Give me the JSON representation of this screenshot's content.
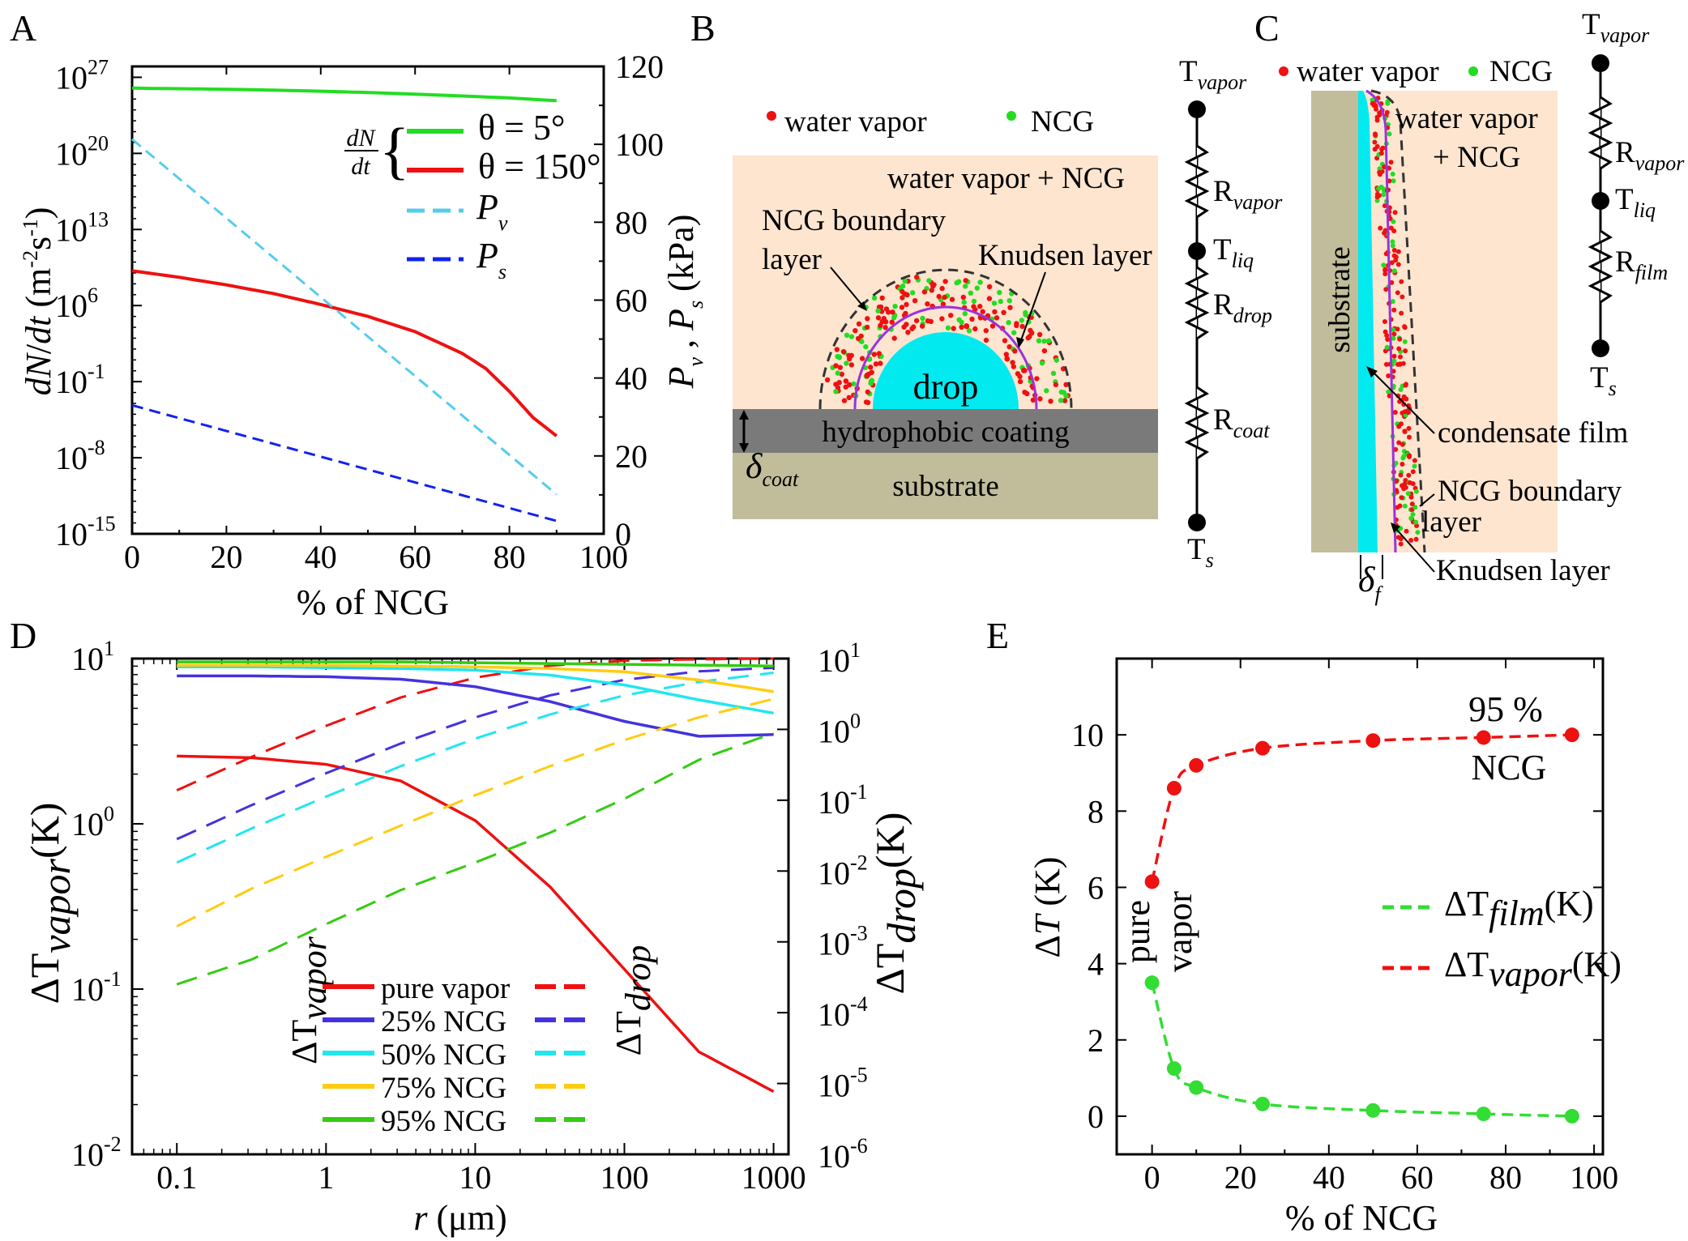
{
  "panels": {
    "a": "A",
    "b": "B",
    "c": "C",
    "d": "D",
    "e": "E"
  },
  "colors": {
    "green": "#22dd22",
    "red": "#ee1111",
    "cyan": "#55ccee",
    "blue": "#1122ee",
    "indigo": "#4433dd",
    "cyan2": "#22e6f0",
    "yellow": "#ffcc11",
    "green2": "#33cc11",
    "peach": "#fde5d0",
    "gray": "#7a7a7a",
    "khaki": "#c1bd9b",
    "drop": "#00eaf0",
    "purple": "#9933dd"
  },
  "chart_data": [
    {
      "id": "A",
      "type": "line",
      "xlabel": "% of NCG",
      "ylabel_left": "dN/dt (m-2s-1)",
      "ylabel_right": "Pv , Ps (kPa)",
      "xlim": [
        0,
        100
      ],
      "ylim_left_log10": [
        -15,
        28
      ],
      "ylim_right": [
        0,
        120
      ],
      "xticks": [
        "0",
        "20",
        "40",
        "60",
        "80",
        "100"
      ],
      "yticks_left": [
        {
          "base": "10",
          "exp": "27"
        },
        {
          "base": "10",
          "exp": "20"
        },
        {
          "base": "10",
          "exp": "13"
        },
        {
          "base": "10",
          "exp": "6"
        },
        {
          "base": "10",
          "exp": "-1"
        },
        {
          "base": "10",
          "exp": "-8"
        },
        {
          "base": "10",
          "exp": "-15"
        }
      ],
      "yticks_right": [
        "120",
        "100",
        "80",
        "60",
        "40",
        "20",
        "0"
      ],
      "legend_prefix": {
        "num": "dN",
        "den": "dt"
      },
      "series": [
        {
          "name": "θ = 5°",
          "axis": "left",
          "style": "solid",
          "color": "#22dd22",
          "x": [
            0,
            10,
            20,
            30,
            40,
            50,
            60,
            70,
            80,
            90
          ],
          "log10_y": [
            26.0,
            25.95,
            25.9,
            25.82,
            25.72,
            25.6,
            25.45,
            25.28,
            25.1,
            24.85
          ]
        },
        {
          "name": "θ = 150°",
          "axis": "left",
          "style": "solid",
          "color": "#ee1111",
          "x": [
            0,
            10,
            20,
            30,
            40,
            50,
            60,
            70,
            75,
            80,
            85,
            90
          ],
          "log10_y": [
            9.2,
            8.6,
            7.9,
            7.1,
            6.1,
            5.0,
            3.6,
            1.6,
            0.2,
            -1.9,
            -4.3,
            -6.0
          ]
        },
        {
          "name": "Pv",
          "axis": "right",
          "style": "dash",
          "color": "#55ccee",
          "x": [
            0,
            90
          ],
          "y": [
            101.3,
            10.1
          ]
        },
        {
          "name": "Ps",
          "axis": "right",
          "style": "dash",
          "color": "#1122ee",
          "x": [
            0,
            90
          ],
          "y": [
            33.0,
            3.3
          ]
        }
      ]
    },
    {
      "id": "D",
      "type": "line",
      "xlabel": "r (μm)",
      "ylabel_left": "ΔTvapor(K)",
      "ylabel_right": "ΔTdrop(K)",
      "xlim_log10": [
        -1.3,
        3.1
      ],
      "ylim_left_log10": [
        -2,
        1
      ],
      "ylim_right_log10": [
        -6,
        1
      ],
      "xticks": [
        "0.1",
        "1",
        "10",
        "100",
        "1000"
      ],
      "yticks_left": [
        {
          "base": "10",
          "exp": "1"
        },
        {
          "base": "10",
          "exp": "0"
        },
        {
          "base": "10",
          "exp": "-1"
        },
        {
          "base": "10",
          "exp": "-2"
        }
      ],
      "yticks_right": [
        {
          "base": "10",
          "exp": "1"
        },
        {
          "base": "10",
          "exp": "0"
        },
        {
          "base": "10",
          "exp": "-1"
        },
        {
          "base": "10",
          "exp": "-2"
        },
        {
          "base": "10",
          "exp": "-3"
        },
        {
          "base": "10",
          "exp": "-4"
        },
        {
          "base": "10",
          "exp": "-5"
        },
        {
          "base": "10",
          "exp": "-6"
        }
      ],
      "legend_left_title": "ΔTvapor",
      "legend_right_title": "ΔTdrop",
      "x_log10": [
        -1,
        -0.5,
        0,
        0.5,
        1,
        1.5,
        2,
        2.5,
        3
      ],
      "series": [
        {
          "name": "pure vapor",
          "color": "#ee1111",
          "vapor_log10": [
            0.41,
            0.4,
            0.36,
            0.26,
            0.02,
            -0.38,
            -0.88,
            -1.38,
            -1.62
          ],
          "drop_log10": [
            -0.86,
            -0.39,
            0.05,
            0.45,
            0.73,
            0.9,
            0.97,
            0.99,
            1.0
          ]
        },
        {
          "name": "25% NCG",
          "color": "#4433dd",
          "vapor_log10": [
            0.895,
            0.895,
            0.89,
            0.875,
            0.83,
            0.74,
            0.62,
            0.53,
            0.54
          ],
          "drop_log10": [
            -1.55,
            -1.07,
            -0.62,
            -0.2,
            0.17,
            0.48,
            0.7,
            0.82,
            0.87
          ]
        },
        {
          "name": "50% NCG",
          "color": "#22e6f0",
          "vapor_log10": [
            0.95,
            0.95,
            0.945,
            0.94,
            0.93,
            0.9,
            0.84,
            0.75,
            0.67
          ],
          "drop_log10": [
            -1.88,
            -1.4,
            -0.95,
            -0.52,
            -0.13,
            0.21,
            0.48,
            0.67,
            0.8
          ]
        },
        {
          "name": "75% NCG",
          "color": "#ffcc11",
          "vapor_log10": [
            0.96,
            0.96,
            0.96,
            0.955,
            0.95,
            0.94,
            0.92,
            0.87,
            0.8
          ],
          "drop_log10": [
            -2.78,
            -2.25,
            -1.8,
            -1.36,
            -0.93,
            -0.52,
            -0.15,
            0.17,
            0.43
          ]
        },
        {
          "name": "95% NCG",
          "color": "#33cc11",
          "vapor_log10": [
            0.98,
            0.98,
            0.98,
            0.98,
            0.975,
            0.97,
            0.965,
            0.96,
            0.955
          ],
          "drop_log10": [
            -3.6,
            -3.25,
            -2.75,
            -2.27,
            -1.88,
            -1.46,
            -0.98,
            -0.43,
            -0.05
          ]
        }
      ]
    },
    {
      "id": "E",
      "type": "line",
      "xlabel": "% of NCG",
      "ylabel": "ΔT (K)",
      "xlim": [
        -8,
        102
      ],
      "ylim": [
        -1,
        12
      ],
      "xticks": [
        "0",
        "20",
        "40",
        "60",
        "80",
        "100"
      ],
      "yticks": [
        "0",
        "2",
        "4",
        "6",
        "8",
        "10"
      ],
      "series": [
        {
          "name": "ΔTfilm(K)",
          "color": "#33dd33",
          "style": "dash-markers",
          "x": [
            0,
            5,
            10,
            25,
            50,
            75,
            95
          ],
          "y": [
            3.5,
            1.25,
            0.75,
            0.32,
            0.15,
            0.06,
            0.0
          ]
        },
        {
          "name": "ΔTvapor(K)",
          "color": "#ee1111",
          "style": "dash-markers",
          "x": [
            0,
            5,
            10,
            25,
            50,
            75,
            95
          ],
          "y": [
            6.15,
            8.6,
            9.2,
            9.65,
            9.85,
            9.93,
            10.0
          ]
        }
      ],
      "annotations": {
        "top_1": "95 %",
        "top_2": "NCG",
        "side_1": "pure",
        "side_2": "vapor"
      }
    }
  ],
  "schematic_b": {
    "legend_vapor": "water vapor",
    "legend_ncg": "NCG",
    "region": "water vapor + NCG",
    "ncg_layer_1": "NCG boundary",
    "ncg_layer_2": "layer",
    "knudsen": "Knudsen layer",
    "drop": "drop",
    "coating": "hydrophobic coating",
    "substrate": "substrate",
    "delta_sym": "δ",
    "delta_sub": "coat",
    "circuit": {
      "T": "T",
      "vapor_sub": "vapor",
      "R": "R",
      "rvapor_sub": "vapor",
      "tliq_sub": "liq",
      "rdrop_sub": "drop",
      "rcoat_sub": "coat",
      "ts_sub": "s"
    }
  },
  "schematic_c": {
    "legend_vapor": "water vapor",
    "legend_ncg": "NCG",
    "region_1": "water vapor",
    "region_2": "+ NCG",
    "substrate": "substrate",
    "film": "condensate film",
    "ncg_layer_1": "NCG boundary",
    "ncg_layer_2": "layer",
    "knudsen": "Knudsen layer",
    "delta_sym": "δ",
    "delta_sub": "f",
    "circuit": {
      "T": "T",
      "vapor_sub": "vapor",
      "R": "R",
      "rvapor_sub": "vapor",
      "tliq_sub": "liq",
      "rfilm_sub": "film",
      "ts_sub": "s"
    }
  }
}
